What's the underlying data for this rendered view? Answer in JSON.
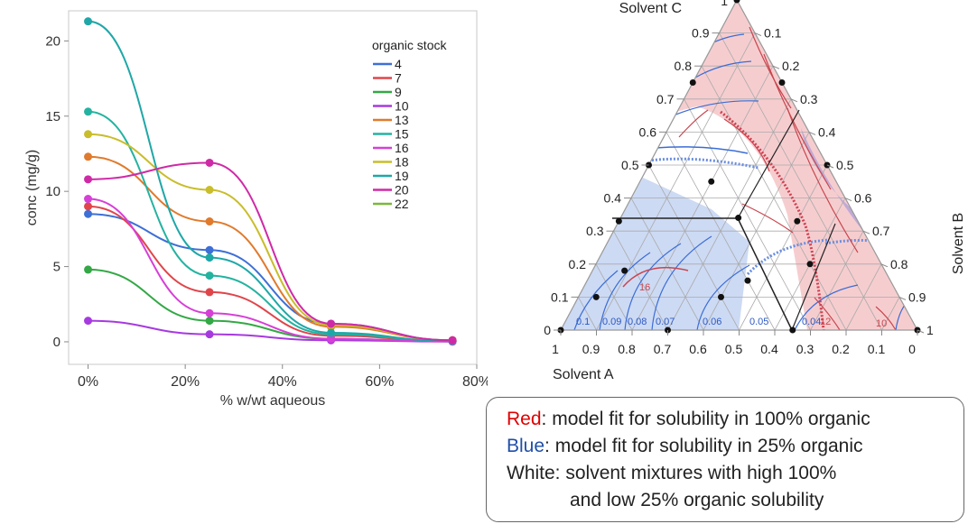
{
  "chart_data": [
    {
      "type": "scatter",
      "xlabel": "% w/wt aqueous",
      "ylabel": "conc (mg/g)",
      "xlim": [
        -4,
        80
      ],
      "ylim": [
        -1.5,
        22
      ],
      "x_ticks": [
        0,
        20,
        40,
        60,
        80
      ],
      "x_tick_labels": [
        "0%",
        "20%",
        "40%",
        "60%",
        "80%"
      ],
      "y_ticks": [
        0,
        5,
        10,
        15,
        20
      ],
      "y_tick_labels": [
        "0",
        "5",
        "10",
        "15",
        "20"
      ],
      "grid": false,
      "legend_title": "organic stock",
      "legend_position": "top-right",
      "x": [
        0,
        25,
        50,
        75
      ],
      "series": [
        {
          "name": "4",
          "color": "#3d6fd6",
          "values": [
            8.5,
            6.1,
            1.2,
            0.1
          ]
        },
        {
          "name": "7",
          "color": "#e0454a",
          "values": [
            9.0,
            3.3,
            0.4,
            0.05
          ]
        },
        {
          "name": "9",
          "color": "#33a845",
          "values": [
            4.8,
            1.4,
            0.2,
            0.02
          ]
        },
        {
          "name": "10",
          "color": "#a63adf",
          "values": [
            1.4,
            0.5,
            0.1,
            0.01
          ]
        },
        {
          "name": "13",
          "color": "#e07a2c",
          "values": [
            12.3,
            8.0,
            1.0,
            0.1
          ]
        },
        {
          "name": "15",
          "color": "#24b3a0",
          "values": [
            15.3,
            4.4,
            0.5,
            0.05
          ]
        },
        {
          "name": "16",
          "color": "#d640d6",
          "values": [
            9.5,
            1.9,
            0.2,
            0.02
          ]
        },
        {
          "name": "18",
          "color": "#c9bd2b",
          "values": [
            13.8,
            10.1,
            1.1,
            0.1
          ]
        },
        {
          "name": "19",
          "color": "#1fa7a7",
          "values": [
            21.3,
            5.6,
            0.6,
            0.05
          ]
        },
        {
          "name": "20",
          "color": "#cf2aa6",
          "values": [
            10.8,
            11.9,
            1.2,
            0.1
          ]
        },
        {
          "name": "22",
          "color": "#7ab83a",
          "values": [
            0,
            0,
            0,
            0
          ]
        }
      ]
    },
    {
      "type": "ternary",
      "axis_labels": {
        "a": "Solvent A",
        "b": "Solvent B",
        "c": "Solvent C"
      },
      "c_axis_ticks": [
        "0",
        "0.1",
        "0.2",
        "0.3",
        "0.4",
        "0.5",
        "0.6",
        "0.7",
        "0.8",
        "0.9",
        "1"
      ],
      "b_axis_ticks": [
        "0.1",
        "0.2",
        "0.3",
        "0.4",
        "0.5",
        "0.6",
        "0.7",
        "0.8",
        "0.9",
        "1"
      ],
      "a_axis_ticks": [
        "1",
        "0.9",
        "0.8",
        "0.7",
        "0.6",
        "0.5",
        "0.4",
        "0.3",
        "0.2",
        "0.1",
        "0"
      ],
      "blue_contour_labels": [
        "0.1",
        "0.09",
        "0.08",
        "0.07",
        "0.06",
        "0.05",
        "0.04"
      ],
      "red_contour_labels": [
        "16",
        "12",
        "10"
      ],
      "design_points": [
        {
          "a": 0.0,
          "b": 0.0,
          "c": 1.0
        },
        {
          "a": 0.25,
          "b": 0.0,
          "c": 0.75
        },
        {
          "a": 0.0,
          "b": 0.25,
          "c": 0.75
        },
        {
          "a": 0.5,
          "b": 0.0,
          "c": 0.5
        },
        {
          "a": 0.35,
          "b": 0.2,
          "c": 0.45
        },
        {
          "a": 0.0,
          "b": 0.5,
          "c": 0.5
        },
        {
          "a": 0.67,
          "b": 0.0,
          "c": 0.33
        },
        {
          "a": 0.33,
          "b": 0.33,
          "c": 0.34
        },
        {
          "a": 0.17,
          "b": 0.5,
          "c": 0.33
        },
        {
          "a": 0.73,
          "b": 0.09,
          "c": 0.18
        },
        {
          "a": 0.2,
          "b": 0.6,
          "c": 0.2
        },
        {
          "a": 0.4,
          "b": 0.45,
          "c": 0.15
        },
        {
          "a": 0.85,
          "b": 0.05,
          "c": 0.1
        },
        {
          "a": 0.5,
          "b": 0.4,
          "c": 0.1
        },
        {
          "a": 1.0,
          "b": 0.0,
          "c": 0.0
        },
        {
          "a": 0.7,
          "b": 0.3,
          "c": 0.0
        },
        {
          "a": 0.35,
          "b": 0.65,
          "c": 0.0
        },
        {
          "a": 0.0,
          "b": 1.0,
          "c": 0.0
        }
      ]
    }
  ],
  "legend": {
    "red_word": "Red",
    "red_text": ": model fit for solubility in 100% organic",
    "blue_word": "Blue",
    "blue_text": ": model fit for solubility in 25% organic",
    "white_line1": "White: solvent mixtures with high 100%",
    "white_line2": "and low 25% organic solubility"
  }
}
